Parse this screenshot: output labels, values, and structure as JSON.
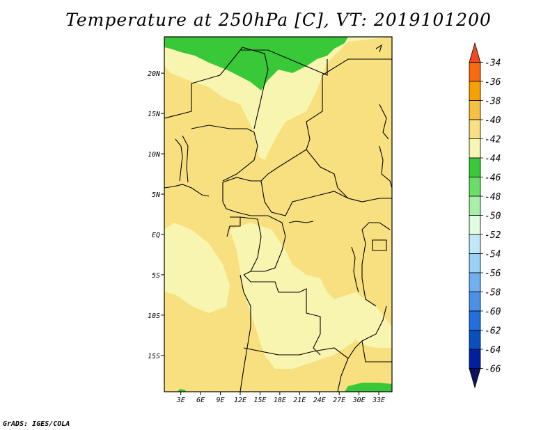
{
  "title": "Temperature at 250hPa [C], VT: 2019101200",
  "credit": "GrADS: IGES/COLA",
  "chart_data": {
    "type": "heatmap",
    "title": "Temperature at 250hPa [C], VT: 2019101200",
    "variable": "Temperature at 250hPa",
    "units": "C",
    "valid_time": "2019101200",
    "x_axis": {
      "ticks": [
        3,
        6,
        9,
        12,
        15,
        18,
        21,
        24,
        27,
        30,
        33
      ],
      "tick_labels": [
        "3E",
        "6E",
        "9E",
        "12E",
        "15E",
        "18E",
        "21E",
        "24E",
        "27E",
        "30E",
        "33E"
      ],
      "range": [
        0.5,
        35
      ]
    },
    "y_axis": {
      "ticks": [
        20,
        15,
        10,
        5,
        0,
        -5,
        -10,
        -15
      ],
      "tick_labels": [
        "20N",
        "15N",
        "10N",
        "5N",
        "EQ",
        "5S",
        "10S",
        "15S"
      ],
      "range": [
        -19.5,
        24.5
      ]
    },
    "colorbar": {
      "labels": [
        "-34",
        "-36",
        "-38",
        "-40",
        "-42",
        "-44",
        "-46",
        "-48",
        "-50",
        "-52",
        "-54",
        "-56",
        "-58",
        "-60",
        "-62",
        "-64",
        "-66"
      ],
      "colors": [
        "#f04a1e",
        "#f86a0c",
        "#f8a000",
        "#f8c040",
        "#f8e080",
        "#f8f5b0",
        "#38c838",
        "#68e068",
        "#a8f0a8",
        "#e0fce0",
        "#c0e8f8",
        "#98d0f8",
        "#70b0f0",
        "#4890e8",
        "#2070e0",
        "#0850c0",
        "#0020a0",
        "#101060"
      ]
    },
    "regions": [
      {
        "range": "-44 to -42",
        "color": "#f8f5b0"
      },
      {
        "range": "-42 to -40",
        "color": "#f8e080"
      },
      {
        "range": "-46 to -44",
        "color": "#38c838"
      }
    ]
  }
}
